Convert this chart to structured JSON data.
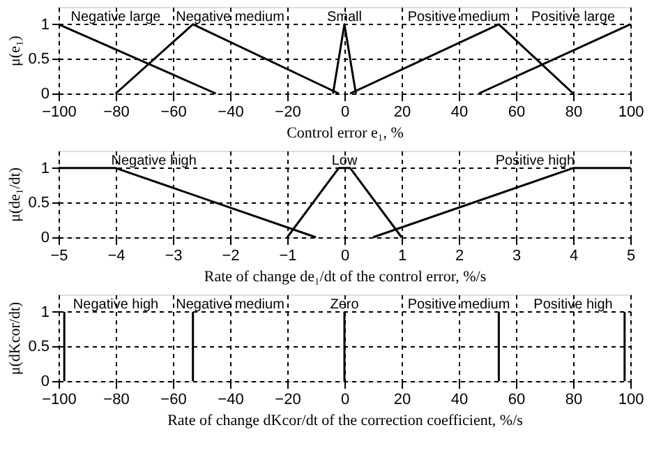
{
  "chart_data": [
    {
      "type": "line",
      "xlabel": "Control error e₁, %",
      "ylabel": "μ(e₁)",
      "xlim": [
        -100,
        100
      ],
      "ylim": [
        0,
        1.25
      ],
      "xticks": [
        -100,
        -80,
        -60,
        -40,
        -20,
        0,
        20,
        40,
        60,
        80,
        100
      ],
      "yticks": [
        0,
        0.5,
        1
      ],
      "grid": true,
      "marker": "none",
      "line_style": "solid",
      "series": [
        {
          "color": "#000000",
          "x": [
            -100,
            -45
          ],
          "values": [
            1,
            0
          ]
        },
        {
          "color": "#000000",
          "x": [
            -80,
            -53,
            -2
          ],
          "values": [
            0,
            1,
            0
          ]
        },
        {
          "color": "#000000",
          "x": [
            -4,
            0,
            4
          ],
          "values": [
            0,
            1,
            0
          ]
        },
        {
          "color": "#000000",
          "x": [
            2,
            54,
            80
          ],
          "values": [
            0,
            1,
            0
          ]
        },
        {
          "color": "#000000",
          "x": [
            47,
            100
          ],
          "values": [
            0,
            1
          ]
        }
      ],
      "annotations": [
        "Negative large",
        "Negative medium",
        "Small",
        "Positive medium",
        "Positive large"
      ]
    },
    {
      "type": "line",
      "xlabel": "Rate of change de₁/dt of the control error, %/s",
      "ylabel": "μ(de₁/dt)",
      "xlim": [
        -5,
        5
      ],
      "ylim": [
        0,
        1.25
      ],
      "xticks": [
        -5,
        -4,
        -3,
        -2,
        -1,
        0,
        1,
        2,
        3,
        4,
        5
      ],
      "yticks": [
        0,
        0.5,
        1
      ],
      "grid": true,
      "marker": "none",
      "line_style": "solid",
      "series": [
        {
          "color": "#000000",
          "x": [
            -5,
            -4,
            -0.5
          ],
          "values": [
            1,
            1,
            0
          ]
        },
        {
          "color": "#000000",
          "x": [
            -1,
            -0.1,
            0.1,
            1
          ],
          "values": [
            0,
            1,
            1,
            0
          ]
        },
        {
          "color": "#000000",
          "x": [
            0.5,
            4,
            5
          ],
          "values": [
            0,
            1,
            1
          ]
        }
      ],
      "annotations": [
        "Negative high",
        "Low",
        "Positive high"
      ]
    },
    {
      "type": "line",
      "xlabel": "Rate of change dKcor/dt of the correction coefficient, %/s",
      "ylabel": "μ(dKcor/dt)",
      "xlim": [
        -100,
        100
      ],
      "ylim": [
        0,
        1.25
      ],
      "xticks": [
        -100,
        -80,
        -60,
        -40,
        -20,
        0,
        20,
        40,
        60,
        80,
        100
      ],
      "yticks": [
        0,
        0.5,
        1
      ],
      "grid": true,
      "marker": "none",
      "line_style": "solid",
      "series": [
        {
          "color": "#000000",
          "x": [
            -98,
            -98
          ],
          "values": [
            0,
            1
          ]
        },
        {
          "color": "#000000",
          "x": [
            -53,
            -53
          ],
          "values": [
            0,
            1
          ]
        },
        {
          "color": "#000000",
          "x": [
            0,
            0
          ],
          "values": [
            0,
            1
          ]
        },
        {
          "color": "#000000",
          "x": [
            54,
            54
          ],
          "values": [
            0,
            1
          ]
        },
        {
          "color": "#000000",
          "x": [
            98,
            98
          ],
          "values": [
            0,
            1
          ]
        }
      ],
      "annotations": [
        "Negative high",
        "Negative medium",
        "Zero",
        "Positive medium",
        "Positive high"
      ]
    }
  ]
}
